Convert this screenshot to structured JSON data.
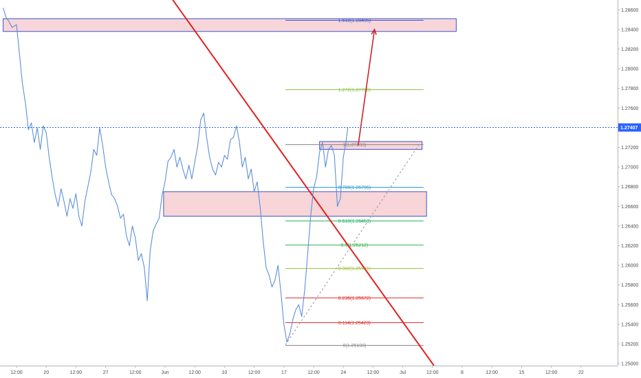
{
  "chart_data": {
    "type": "line",
    "title": "",
    "xlabel": "",
    "ylabel": "",
    "ylim": [
      1.2498,
      1.287
    ],
    "y_ticks": [
      1.25,
      1.252,
      1.254,
      1.256,
      1.258,
      1.26,
      1.262,
      1.264,
      1.266,
      1.268,
      1.27,
      1.272,
      1.274,
      1.276,
      1.278,
      1.28,
      1.282,
      1.284,
      1.286
    ],
    "y_tick_labels": [
      "1.25000",
      "1.25200",
      "1.25400",
      "1.25600",
      "1.25800",
      "1.26000",
      "1.26200",
      "1.26400",
      "1.26600",
      "1.26800",
      "1.27000",
      "1.27200",
      "1.27400",
      "1.27600",
      "1.27800",
      "1.28000",
      "1.28200",
      "1.28400",
      "1.28600"
    ],
    "x_ticks": [
      {
        "label": "12:00",
        "t": 0
      },
      {
        "label": "20",
        "t": 1
      },
      {
        "label": "12:00",
        "t": 2
      },
      {
        "label": "27",
        "t": 3
      },
      {
        "label": "12:00",
        "t": 4
      },
      {
        "label": "Jun",
        "t": 5
      },
      {
        "label": "12:00",
        "t": 6
      },
      {
        "label": "10",
        "t": 7
      },
      {
        "label": "12:00",
        "t": 8
      },
      {
        "label": "17",
        "t": 9
      },
      {
        "label": "12:00",
        "t": 10
      },
      {
        "label": "24",
        "t": 11
      },
      {
        "label": "12:00",
        "t": 12
      },
      {
        "label": "Jul",
        "t": 13
      },
      {
        "label": "12:00",
        "t": 14
      },
      {
        "label": "8",
        "t": 15
      },
      {
        "label": "12:00",
        "t": 16
      },
      {
        "label": "15",
        "t": 17
      },
      {
        "label": "12:00",
        "t": 18
      },
      {
        "label": "22",
        "t": 19
      }
    ],
    "series": [
      {
        "color": "#5b8fd9",
        "x": [
          -0.45,
          -0.35,
          -0.25,
          -0.15,
          0.0,
          0.1,
          0.2,
          0.3,
          0.4,
          0.5,
          0.6,
          0.7,
          0.8,
          0.9,
          1.0,
          1.1,
          1.2,
          1.3,
          1.4,
          1.5,
          1.6,
          1.7,
          1.8,
          1.9,
          2.0,
          2.1,
          2.2,
          2.3,
          2.4,
          2.5,
          2.6,
          2.7,
          2.8,
          2.9,
          3.0,
          3.1,
          3.2,
          3.3,
          3.4,
          3.5,
          3.6,
          3.7,
          3.8,
          3.9,
          4.0,
          4.1,
          4.2,
          4.3,
          4.4,
          4.5,
          4.6,
          4.7,
          4.8,
          4.9,
          5.0,
          5.1,
          5.2,
          5.3,
          5.4,
          5.5,
          5.6,
          5.7,
          5.8,
          5.9,
          6.0,
          6.1,
          6.2,
          6.3,
          6.4,
          6.5,
          6.6,
          6.7,
          6.8,
          6.9,
          7.0,
          7.1,
          7.2,
          7.3,
          7.4,
          7.5,
          7.6,
          7.7,
          7.8,
          7.9,
          8.0,
          8.1,
          8.2,
          8.3,
          8.4,
          8.5,
          8.6,
          8.7,
          8.8,
          8.9,
          9.0,
          9.1,
          9.2,
          9.3,
          9.4,
          9.5,
          9.6,
          9.7,
          9.8,
          9.9,
          10.0,
          10.1,
          10.2,
          10.3,
          10.4,
          10.5,
          10.6,
          10.7,
          10.8,
          10.9,
          11.0,
          11.1,
          11.15
        ],
        "values": [
          1.2862,
          1.2852,
          1.2848,
          1.2842,
          1.2845,
          1.2815,
          1.2785,
          1.2765,
          1.2738,
          1.2745,
          1.2725,
          1.274,
          1.2718,
          1.2742,
          1.2735,
          1.271,
          1.269,
          1.2672,
          1.266,
          1.2678,
          1.2665,
          1.265,
          1.2668,
          1.2658,
          1.2673,
          1.265,
          1.264,
          1.2665,
          1.268,
          1.2695,
          1.2718,
          1.2712,
          1.274,
          1.2722,
          1.27,
          1.2685,
          1.2672,
          1.2668,
          1.266,
          1.2648,
          1.2652,
          1.263,
          1.262,
          1.264,
          1.2628,
          1.2605,
          1.2612,
          1.2598,
          1.2564,
          1.2615,
          1.2635,
          1.2642,
          1.2648,
          1.2672,
          1.2685,
          1.2706,
          1.271,
          1.2718,
          1.27,
          1.271,
          1.2698,
          1.2688,
          1.2702,
          1.2688,
          1.2705,
          1.2722,
          1.2748,
          1.2755,
          1.273,
          1.271,
          1.2698,
          1.2692,
          1.2705,
          1.27,
          1.2712,
          1.2708,
          1.2728,
          1.273,
          1.2742,
          1.2726,
          1.27,
          1.271,
          1.2688,
          1.2698,
          1.2675,
          1.2685,
          1.266,
          1.2625,
          1.2598,
          1.259,
          1.2578,
          1.2585,
          1.26,
          1.2572,
          1.254,
          1.2522,
          1.253,
          1.2545,
          1.2555,
          1.256,
          1.2548,
          1.2575,
          1.2612,
          1.265,
          1.2678,
          1.269,
          1.2715,
          1.2725,
          1.27,
          1.2718,
          1.2722,
          1.2712,
          1.266,
          1.2668,
          1.271,
          1.2728,
          1.274
        ]
      }
    ],
    "current_price": {
      "value": 1.27407,
      "label": "1.27407"
    },
    "fib_levels": [
      {
        "label": "1.618(1.28495)",
        "value": 1.28495,
        "color": "#3a55cc"
      },
      {
        "label": "1.272(1.27788)",
        "value": 1.27788,
        "color": "#8bc34a"
      },
      {
        "label": "1(1.27233)",
        "value": 1.27233,
        "color": "#888888"
      },
      {
        "label": "0.786(1.26796)",
        "value": 1.26796,
        "color": "#2e9bd6"
      },
      {
        "label": "0.618(1.26453)",
        "value": 1.26453,
        "color": "#26b36b"
      },
      {
        "label": "0.5(1.26212)",
        "value": 1.26212,
        "color": "#37b24d"
      },
      {
        "label": "0.382(1.25971)",
        "value": 1.25971,
        "color": "#9bc53d"
      },
      {
        "label": "0.236(1.25672)",
        "value": 1.25672,
        "color": "#e03131"
      },
      {
        "label": "0.114(1.25423)",
        "value": 1.25423,
        "color": "#e03131"
      },
      {
        "label": "0(1.25190)",
        "value": 1.2519,
        "color": "#888888"
      }
    ],
    "fib_x_range": [
      9.05,
      13.7
    ],
    "zones": [
      {
        "name": "upper-zone",
        "x0": -0.45,
        "x1": 14.8,
        "y0": 1.2838,
        "y1": 1.2851
      },
      {
        "name": "middle-zone",
        "x0": 4.95,
        "x1": 13.8,
        "y0": 1.265,
        "y1": 1.2675
      },
      {
        "name": "small-zone",
        "x0": 10.2,
        "x1": 13.65,
        "y0": 1.2718,
        "y1": 1.2726
      }
    ],
    "trendline": {
      "x0": 4.6,
      "y0": 1.2898,
      "x1": 14.05,
      "y1": 1.2498,
      "color": "#e02020"
    },
    "dotted_diagonal": {
      "x0": 9.05,
      "y0": 1.2519,
      "x1": 13.55,
      "y1": 1.2723
    },
    "arrow": {
      "x0": 11.5,
      "y0": 1.2722,
      "x1": 12.05,
      "y1": 1.284,
      "color": "#d0202a"
    },
    "colors": {
      "background": "#ffffff",
      "grid_axis": "#b0b4bd",
      "price_tag_bg": "#2962ff",
      "zone_fill": "#f7d5d9",
      "zone_border": "#3a55cc"
    }
  }
}
